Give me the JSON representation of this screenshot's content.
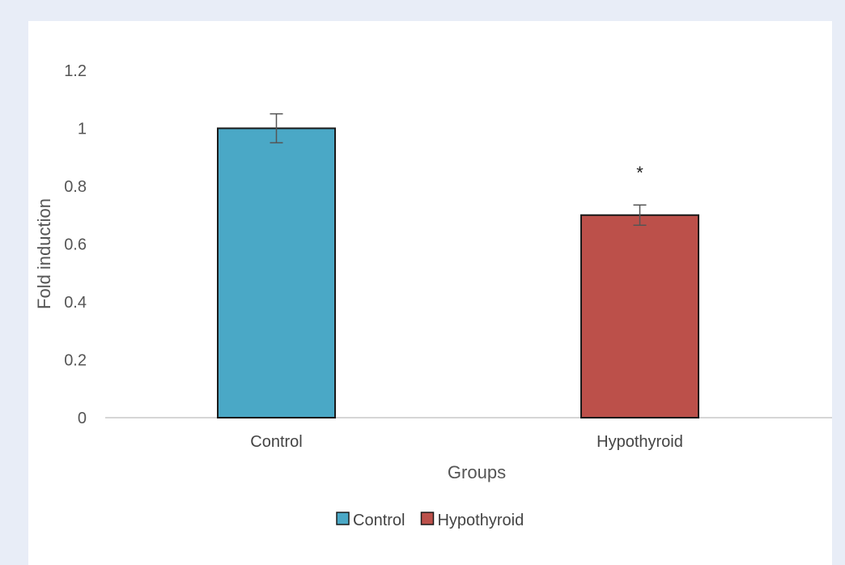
{
  "chart_data": {
    "type": "bar",
    "categories": [
      "Control",
      "Hypothyroid"
    ],
    "values": [
      1.0,
      0.7
    ],
    "errors": [
      0.05,
      0.035
    ],
    "annotations": [
      "",
      "*"
    ],
    "colors": [
      "#4aa8c6",
      "#bc504a"
    ],
    "xlabel": "Groups",
    "ylabel": "Fold induction",
    "ylim": [
      0,
      1.2
    ],
    "yticks": [
      "0",
      "0.2",
      "0.4",
      "0.6",
      "0.8",
      "1",
      "1.2"
    ],
    "legend": {
      "position": "bottom",
      "entries": [
        {
          "label": "Control",
          "color": "#4aa8c6"
        },
        {
          "label": "Hypothyroid",
          "color": "#bc504a"
        }
      ]
    },
    "grid": false
  }
}
